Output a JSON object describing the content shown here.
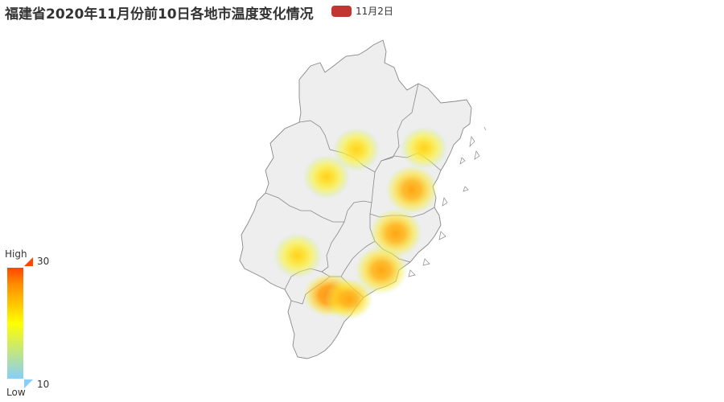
{
  "title": "福建省2020年11月份前10日各地市温度变化情况",
  "legend": {
    "label": "11月2日",
    "color": "#c23531"
  },
  "visual_map": {
    "high_text": "High",
    "low_text": "Low",
    "max": "30",
    "min": "10",
    "colors": [
      "#87cefa",
      "#ffff00",
      "#ff8c00",
      "#ff4500"
    ],
    "handle_top_color": "#ff4500",
    "handle_bottom_color": "#87cefa"
  },
  "map": {
    "fill": "#eeeeee",
    "stroke": "#888888"
  }
}
